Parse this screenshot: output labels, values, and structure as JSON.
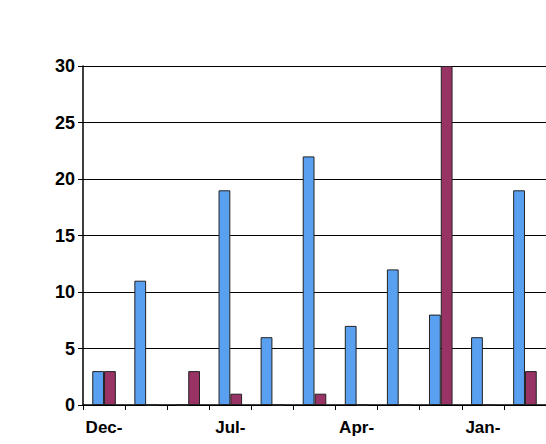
{
  "chart_data": {
    "type": "bar",
    "categories": [
      "Dec-",
      null,
      null,
      "Jul-",
      null,
      null,
      "Apr-",
      null,
      null,
      "Jan-",
      null
    ],
    "series": [
      {
        "color": "#5aa0f0",
        "values": [
          3,
          11,
          0,
          19,
          6,
          22,
          7,
          12,
          8,
          6,
          19
        ]
      },
      {
        "color": "#993366",
        "values": [
          3,
          0,
          3,
          1,
          0,
          1,
          0,
          0,
          30,
          0,
          3
        ]
      }
    ],
    "ylim": [
      0,
      30
    ],
    "yticks": [
      0,
      5,
      10,
      15,
      20,
      25,
      30
    ],
    "grid": true
  }
}
